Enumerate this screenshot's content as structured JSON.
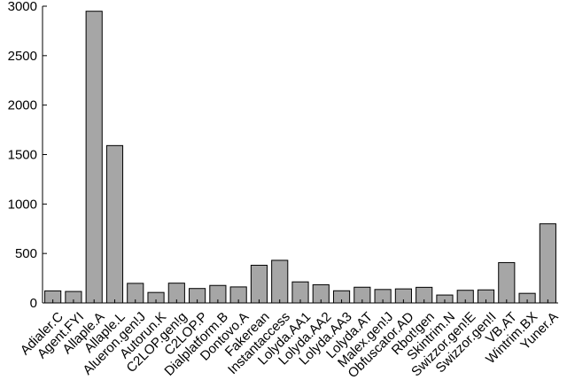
{
  "chart_data": {
    "type": "bar",
    "title": "",
    "xlabel": "",
    "ylabel": "",
    "ylim": [
      0,
      3000
    ],
    "yticks": [
      0,
      500,
      1000,
      1500,
      2000,
      2500,
      3000
    ],
    "grid": false,
    "legend": "none",
    "bar_color": "#a6a6a6",
    "edge_color": "#000000",
    "categories": [
      "Adialer.C",
      "Agent.FYI",
      "Allaple.A",
      "Allaple.L",
      "Alueron.gen!J",
      "Autorun.K",
      "C2LOP.gen!g",
      "C2LOP.P",
      "Dialplatform.B",
      "Dontovo.A",
      "Fakerean",
      "Instantaccess",
      "Lolyda.AA1",
      "Lolyda.AA2",
      "Lolyda.AA3",
      "Lolyda.AT",
      "Malex.gen!J",
      "Obfuscator.AD",
      "Rbot!gen",
      "Skintrim.N",
      "Swizzor.gen!E",
      "Swizzor.gen!I",
      "VB.AT",
      "Wintrim.BX",
      "Yuner.A"
    ],
    "values": [
      122,
      116,
      2949,
      1591,
      198,
      106,
      200,
      146,
      177,
      162,
      381,
      431,
      213,
      184,
      123,
      159,
      136,
      142,
      158,
      80,
      128,
      132,
      408,
      97,
      800
    ]
  }
}
